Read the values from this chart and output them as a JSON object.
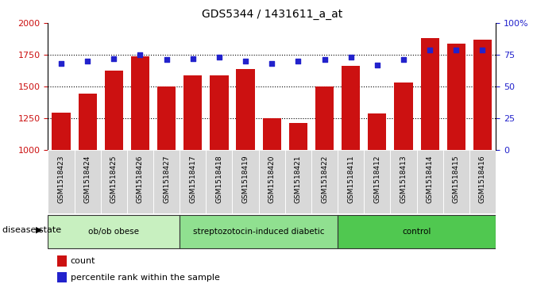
{
  "title": "GDS5344 / 1431611_a_at",
  "samples": [
    "GSM1518423",
    "GSM1518424",
    "GSM1518425",
    "GSM1518426",
    "GSM1518427",
    "GSM1518417",
    "GSM1518418",
    "GSM1518419",
    "GSM1518420",
    "GSM1518421",
    "GSM1518422",
    "GSM1518411",
    "GSM1518412",
    "GSM1518413",
    "GSM1518414",
    "GSM1518415",
    "GSM1518416"
  ],
  "counts": [
    1290,
    1440,
    1625,
    1740,
    1500,
    1590,
    1590,
    1640,
    1250,
    1210,
    1500,
    1660,
    1285,
    1530,
    1880,
    1840,
    1870
  ],
  "percentiles": [
    68,
    70,
    72,
    75,
    71,
    72,
    73,
    70,
    68,
    70,
    71,
    73,
    67,
    71,
    79,
    79,
    79
  ],
  "groups": [
    {
      "label": "ob/ob obese",
      "start": 0,
      "end": 5,
      "color": "#c8f0c0"
    },
    {
      "label": "streptozotocin-induced diabetic",
      "start": 5,
      "end": 11,
      "color": "#90e090"
    },
    {
      "label": "control",
      "start": 11,
      "end": 17,
      "color": "#50c850"
    }
  ],
  "ylim_left": [
    1000,
    2000
  ],
  "ylim_right": [
    0,
    100
  ],
  "yticks_left": [
    1000,
    1250,
    1500,
    1750,
    2000
  ],
  "yticks_right": [
    0,
    25,
    50,
    75,
    100
  ],
  "ytick_right_labels": [
    "0",
    "25",
    "50",
    "75",
    "100%"
  ],
  "bar_color": "#cc1111",
  "dot_color": "#2222cc",
  "bg_color": "#d8d8d8",
  "plot_bg_color": "#ffffff",
  "disease_state_label": "disease state",
  "legend_count": "count",
  "legend_percentile": "percentile rank within the sample"
}
